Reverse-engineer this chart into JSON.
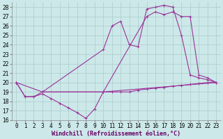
{
  "background_color": "#cce8e8",
  "grid_color": "#aacccc",
  "line_color": "#993399",
  "line_width": 0.8,
  "marker_size": 3,
  "marker_ew": 0.7,
  "xlim": [
    -0.5,
    23.5
  ],
  "ylim": [
    16,
    28.5
  ],
  "xlabel": "Windchill (Refroidissement éolien,°C)",
  "xlabel_fontsize": 6,
  "xlabel_color": "#660066",
  "xticks": [
    0,
    1,
    2,
    3,
    4,
    5,
    6,
    7,
    8,
    9,
    10,
    11,
    12,
    13,
    14,
    15,
    16,
    17,
    18,
    19,
    20,
    21,
    22,
    23
  ],
  "yticks": [
    16,
    17,
    18,
    19,
    20,
    21,
    22,
    23,
    24,
    25,
    26,
    27,
    28
  ],
  "tick_fontsize": 5.5,
  "series": [
    {
      "x": [
        0,
        1,
        2,
        3,
        4,
        5,
        6,
        7,
        8,
        9,
        10,
        23
      ],
      "y": [
        20,
        18.5,
        18.5,
        18.8,
        18.3,
        17.8,
        17.3,
        16.8,
        16.2,
        17.2,
        19.0,
        20.0
      ]
    },
    {
      "x": [
        0,
        1,
        2,
        3,
        10,
        11,
        12,
        13,
        14,
        15,
        16,
        17,
        18,
        19,
        20,
        21,
        22,
        23
      ],
      "y": [
        20,
        18.5,
        18.5,
        19.0,
        23.5,
        26.0,
        26.5,
        24.0,
        23.8,
        27.8,
        28.0,
        28.2,
        28.0,
        25.0,
        20.8,
        20.5,
        20.3,
        20.0
      ]
    },
    {
      "x": [
        0,
        3,
        10,
        11,
        12,
        13,
        14,
        15,
        16,
        17,
        18,
        19,
        20,
        21,
        22,
        23
      ],
      "y": [
        20,
        19.0,
        19.0,
        19.0,
        19.0,
        19.0,
        19.2,
        19.3,
        19.4,
        19.5,
        19.6,
        19.7,
        19.8,
        19.9,
        20.0,
        20.0
      ]
    },
    {
      "x": [
        3,
        10,
        15,
        16,
        17,
        18,
        19,
        20,
        21,
        22,
        23
      ],
      "y": [
        19.0,
        19.0,
        27.0,
        27.5,
        27.2,
        27.5,
        27.0,
        27.0,
        20.8,
        20.5,
        20.0
      ]
    }
  ]
}
